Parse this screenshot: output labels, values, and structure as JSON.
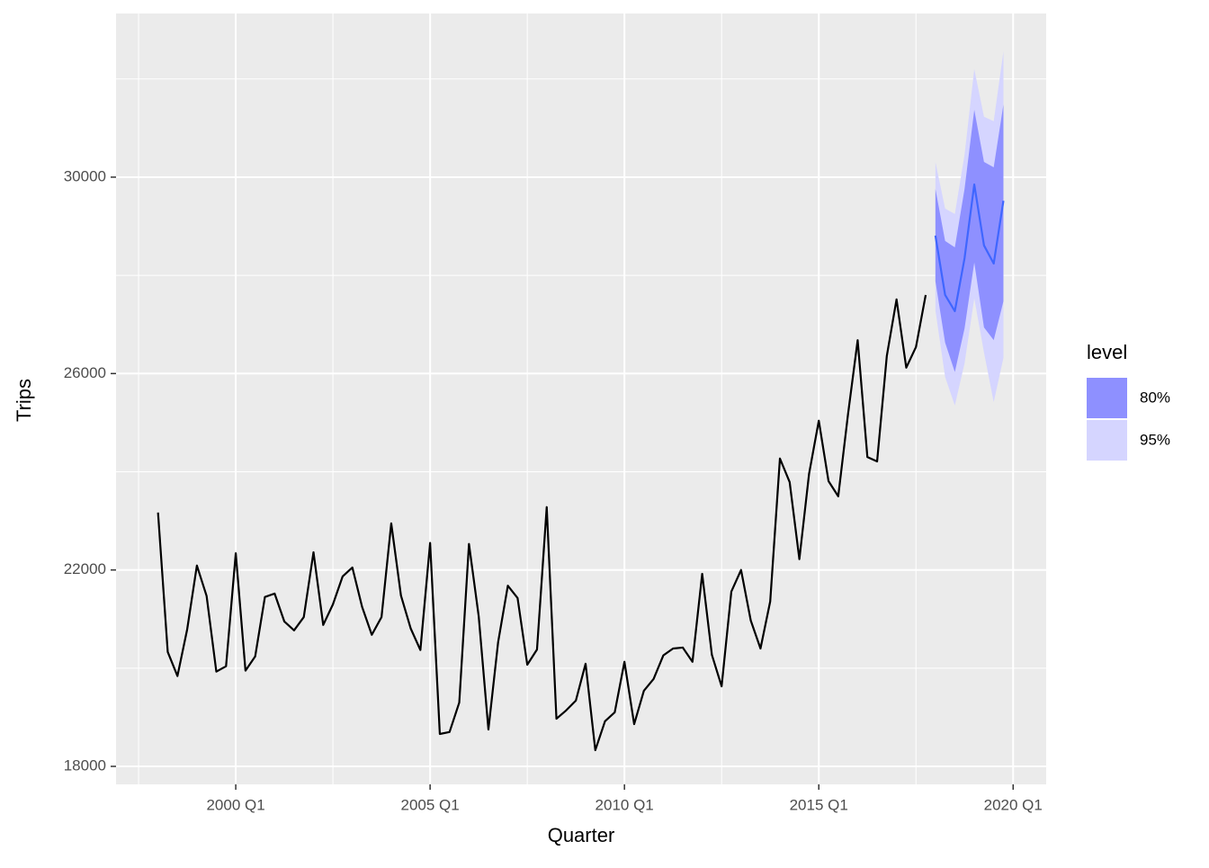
{
  "chart_data": {
    "type": "line",
    "x_label": "Quarter",
    "y_label": "Trips",
    "xlim": [
      1996.92,
      2020.85
    ],
    "xticks": [
      {
        "value": 2000,
        "label": "2000 Q1"
      },
      {
        "value": 2005,
        "label": "2005 Q1"
      },
      {
        "value": 2010,
        "label": "2010 Q1"
      },
      {
        "value": 2015,
        "label": "2015 Q1"
      },
      {
        "value": 2020,
        "label": "2020 Q1"
      }
    ],
    "minor_xticks": [
      1997.5,
      2002.5,
      2007.5,
      2012.5,
      2017.5
    ],
    "ylim": [
      17634,
      33333
    ],
    "yticks": [
      18000,
      22000,
      26000,
      30000
    ],
    "minor_yticks": [
      20000,
      24000,
      28000,
      32000
    ],
    "grid": true,
    "history": {
      "color": "#000000",
      "x": [
        "1998 Q1",
        "1998 Q2",
        "1998 Q3",
        "1998 Q4",
        "1999 Q1",
        "1999 Q2",
        "1999 Q3",
        "1999 Q4",
        "2000 Q1",
        "2000 Q2",
        "2000 Q3",
        "2000 Q4",
        "2001 Q1",
        "2001 Q2",
        "2001 Q3",
        "2001 Q4",
        "2002 Q1",
        "2002 Q2",
        "2002 Q3",
        "2002 Q4",
        "2003 Q1",
        "2003 Q2",
        "2003 Q3",
        "2003 Q4",
        "2004 Q1",
        "2004 Q2",
        "2004 Q3",
        "2004 Q4",
        "2005 Q1",
        "2005 Q2",
        "2005 Q3",
        "2005 Q4",
        "2006 Q1",
        "2006 Q2",
        "2006 Q3",
        "2006 Q4",
        "2007 Q1",
        "2007 Q2",
        "2007 Q3",
        "2007 Q4",
        "2008 Q1",
        "2008 Q2",
        "2008 Q3",
        "2008 Q4",
        "2009 Q1",
        "2009 Q2",
        "2009 Q3",
        "2009 Q4",
        "2010 Q1",
        "2010 Q2",
        "2010 Q3",
        "2010 Q4",
        "2011 Q1",
        "2011 Q2",
        "2011 Q3",
        "2011 Q4",
        "2012 Q1",
        "2012 Q2",
        "2012 Q3",
        "2012 Q4",
        "2013 Q1",
        "2013 Q2",
        "2013 Q3",
        "2013 Q4",
        "2014 Q1",
        "2014 Q2",
        "2014 Q3",
        "2014 Q4",
        "2015 Q1",
        "2015 Q2",
        "2015 Q3",
        "2015 Q4",
        "2016 Q1",
        "2016 Q2",
        "2016 Q3",
        "2016 Q4",
        "2017 Q1",
        "2017 Q2",
        "2017 Q3",
        "2017 Q4"
      ],
      "values": [
        23170,
        20330,
        19840,
        20790,
        22090,
        21470,
        19930,
        20040,
        22340,
        19950,
        20240,
        21450,
        21520,
        20950,
        20770,
        21040,
        22360,
        20880,
        21300,
        21870,
        22050,
        21250,
        20680,
        21040,
        22950,
        21480,
        20810,
        20370,
        22550,
        18660,
        18700,
        19300,
        22530,
        21060,
        18750,
        20530,
        21680,
        21430,
        20070,
        20380,
        23280,
        18970,
        19140,
        19340,
        20090,
        18330,
        18920,
        19100,
        20130,
        18860,
        19540,
        19780,
        20260,
        20400,
        20420,
        20130,
        21920,
        20270,
        19630,
        21560,
        22000,
        20970,
        20400,
        21360,
        24270,
        23790,
        22220,
        23960,
        25040,
        23810,
        23500,
        25160,
        26680,
        24300,
        24210,
        26360,
        27510,
        26120,
        26540,
        27600
      ]
    },
    "forecast": {
      "color": "#3f66ff",
      "x": [
        "2018 Q1",
        "2018 Q2",
        "2018 Q3",
        "2018 Q4",
        "2019 Q1",
        "2019 Q2",
        "2019 Q3",
        "2019 Q4"
      ],
      "values": [
        28810,
        27600,
        27270,
        28350,
        29850,
        28610,
        28240,
        29520
      ]
    },
    "legend_title": "level",
    "intervals": [
      {
        "name": "80%",
        "color": "#8e90ff",
        "upper": [
          29760,
          28700,
          28570,
          29760,
          31370,
          30310,
          30200,
          31480
        ],
        "lower": [
          27880,
          26630,
          26030,
          26920,
          28260,
          26940,
          26680,
          27470
        ]
      },
      {
        "name": "95%",
        "color": "#d5d5ff",
        "upper": [
          30310,
          29360,
          29250,
          30460,
          32200,
          31230,
          31140,
          32560
        ],
        "lower": [
          27290,
          25930,
          25350,
          26210,
          27530,
          26430,
          25420,
          26320
        ]
      }
    ]
  }
}
